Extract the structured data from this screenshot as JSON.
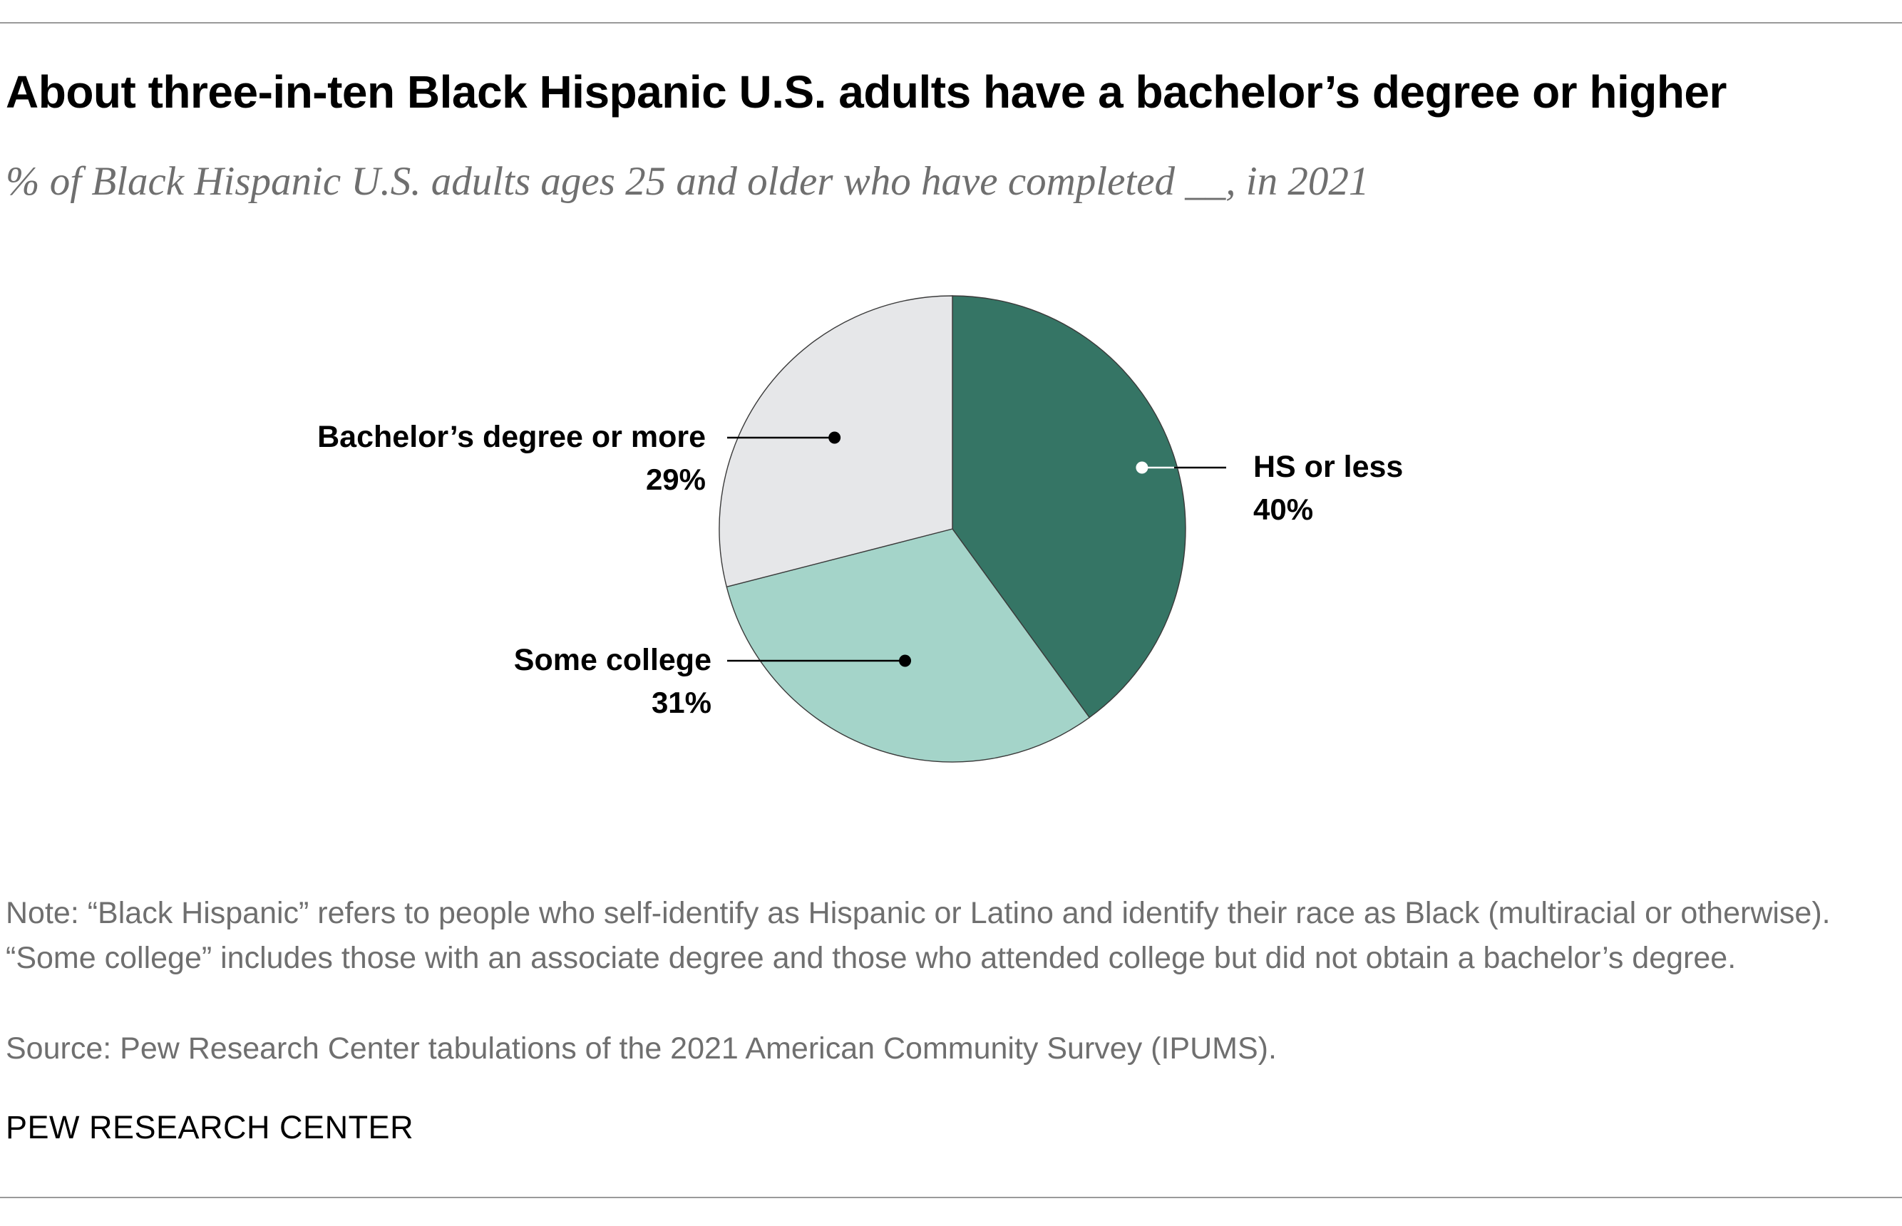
{
  "chart_data": {
    "type": "pie",
    "title": "About three-in-ten Black Hispanic U.S. adults have a bachelor’s degree or higher",
    "subtitle": "% of Black Hispanic U.S. adults ages 25 and older who have completed __, in 2021",
    "categories": [
      "HS or less",
      "Some college",
      "Bachelor’s degree or more"
    ],
    "values": [
      40,
      31,
      29
    ],
    "value_labels": [
      "40%",
      "31%",
      "29%"
    ],
    "colors": [
      "#357565",
      "#a4d4c9",
      "#e6e7e9"
    ],
    "start": "12 o'clock, clockwise"
  },
  "note": "Note: “Black Hispanic” refers to people who self-identify as Hispanic or Latino and identify their race as Black (multiracial or otherwise). “Some college” includes those with an associate degree and those who attended college but did not obtain a bachelor’s degree.",
  "source": "Source: Pew Research Center tabulations of the 2021 American Community Survey (IPUMS).",
  "brand": "PEW RESEARCH CENTER"
}
